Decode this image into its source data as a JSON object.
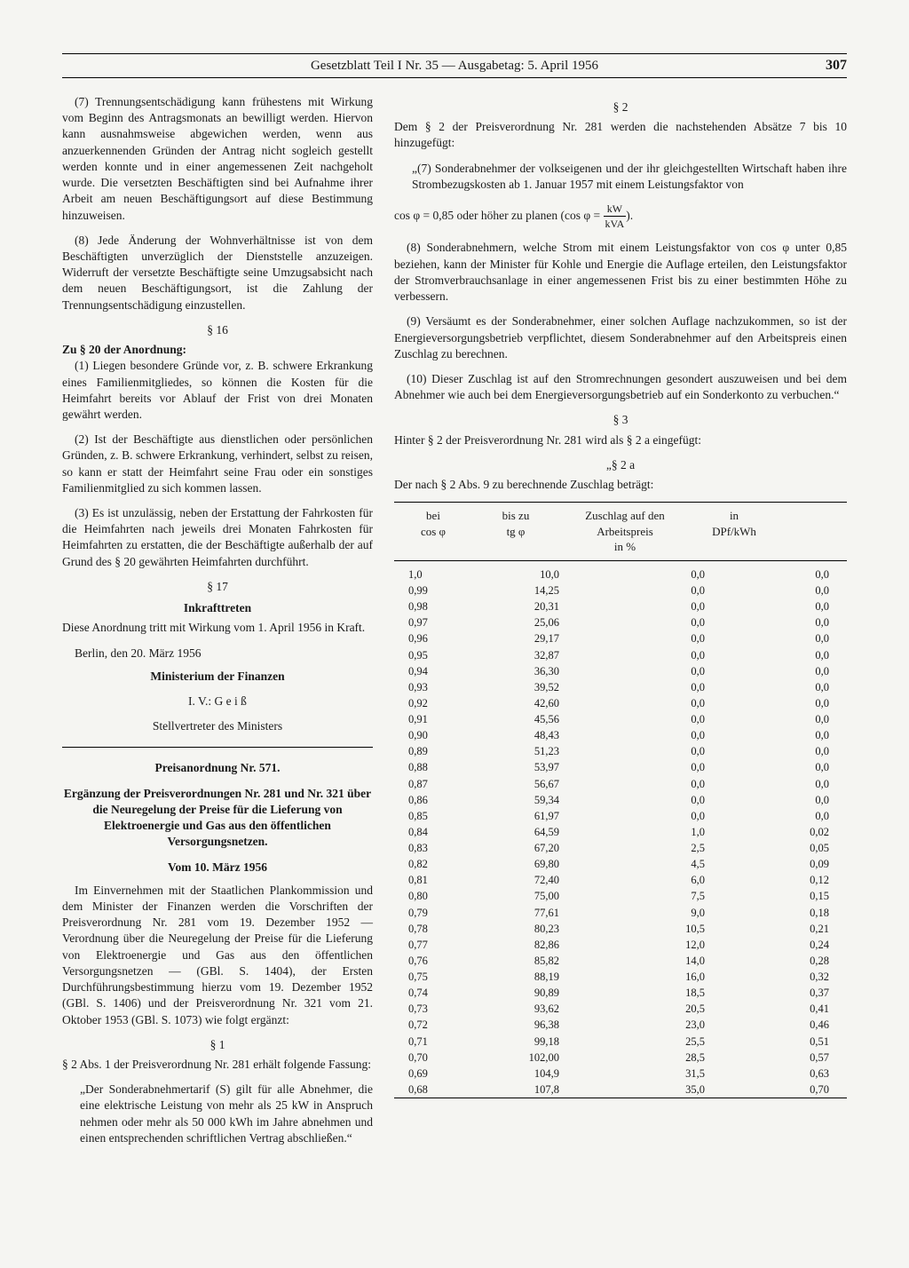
{
  "header": {
    "title": "Gesetzblatt Teil I Nr. 35 — Ausgabetag: 5. April 1956",
    "page_number": "307"
  },
  "left": {
    "p1": "(7) Trennungsentschädigung kann frühestens mit Wirkung vom Beginn des Antragsmonats an bewilligt werden. Hiervon kann ausnahmsweise abgewichen werden, wenn aus anzuerkennenden Gründen der Antrag nicht sogleich gestellt werden konnte und in einer angemessenen Zeit nachgeholt wurde. Die versetzten Beschäftigten sind bei Aufnahme ihrer Arbeit am neuen Beschäftigungsort auf diese Bestimmung hinzuweisen.",
    "p2": "(8) Jede Änderung der Wohnverhältnisse ist von dem Beschäftigten unverzüglich der Dienststelle anzuzeigen. Widerruft der versetzte Beschäftigte seine Umzugsabsicht nach dem neuen Beschäftigungsort, ist die Zahlung der Trennungsentschädigung einzustellen.",
    "s16": "§ 16",
    "s16_head": "Zu § 20 der Anordnung:",
    "p3": "(1) Liegen besondere Gründe vor, z. B. schwere Erkrankung eines Familienmitgliedes, so können die Kosten für die Heimfahrt bereits vor Ablauf der Frist von drei Monaten gewährt werden.",
    "p4": "(2) Ist der Beschäftigte aus dienstlichen oder persönlichen Gründen, z. B. schwere Erkrankung, verhindert, selbst zu reisen, so kann er statt der Heimfahrt seine Frau oder ein sonstiges Familienmitglied zu sich kommen lassen.",
    "p5": "(3) Es ist unzulässig, neben der Erstattung der Fahrkosten für die Heimfahrten nach jeweils drei Monaten Fahrkosten für Heimfahrten zu erstatten, die der Beschäftigte außerhalb der auf Grund des § 20 gewährten Heimfahrten durchführt.",
    "s17": "§ 17",
    "s17_head": "Inkrafttreten",
    "p6": "Diese Anordnung tritt mit Wirkung vom 1. April 1956 in Kraft.",
    "date": "Berlin, den 20. März 1956",
    "ministry": "Ministerium der Finanzen",
    "sig1": "I. V.: G e i ß",
    "sig2": "Stellvertreter des Ministers",
    "ord_num": "Preisanordnung Nr. 571.",
    "ord_title": "Ergänzung der Preisverordnungen Nr. 281 und Nr. 321 über die Neuregelung der Preise für die Lieferung von Elektroenergie und Gas aus den öffentlichen Versorgungsnetzen.",
    "ord_date": "Vom 10. März 1956",
    "p7": "Im Einvernehmen mit der Staatlichen Plankommission und dem Minister der Finanzen werden die Vorschriften der Preisverordnung Nr. 281 vom 19. Dezember 1952 — Verordnung über die Neuregelung der Preise für die Lieferung von Elektroenergie und Gas aus den öffentlichen Versorgungsnetzen — (GBl. S. 1404), der Ersten Durchführungsbestimmung hierzu vom 19. Dezember 1952 (GBl. S. 1406) und der Preisverordnung Nr. 321 vom 21. Oktober 1953 (GBl. S. 1073) wie folgt ergänzt:",
    "s1": "§ 1",
    "p8": "§ 2 Abs. 1 der Preisverordnung Nr. 281 erhält folgende Fassung:",
    "p9": "„Der Sonderabnehmertarif (S) gilt für alle Abnehmer, die eine elektrische Leistung von mehr als 25 kW in Anspruch nehmen oder mehr als 50 000 kWh im Jahre abnehmen und einen entsprechenden schriftlichen Vertrag abschließen.“"
  },
  "right": {
    "s2": "§ 2",
    "p1": "Dem § 2 der Preisverordnung Nr. 281 werden die nachstehenden Absätze 7 bis 10 hinzugefügt:",
    "p2": "„(7) Sonderabnehmer der volkseigenen und der ihr gleichgestellten Wirtschaft haben ihre Strombezugskosten ab 1. Januar 1957 mit einem Leistungsfaktor von",
    "formula_pre": "cos φ = 0,85 oder höher zu planen (cos φ =",
    "frac_num": "kW",
    "frac_den": "kVA",
    "formula_post": ").",
    "p3": "(8) Sonderabnehmern, welche Strom mit einem Leistungsfaktor von cos φ unter 0,85 beziehen, kann der Minister für Kohle und Energie die Auflage erteilen, den Leistungsfaktor der Stromverbrauchsanlage in einer angemessenen Frist bis zu einer bestimmten Höhe zu verbessern.",
    "p4": "(9) Versäumt es der Sonderabnehmer, einer solchen Auflage nachzukommen, so ist der Energieversorgungsbetrieb verpflichtet, diesem Sonderabnehmer auf den Arbeitspreis einen Zuschlag zu berechnen.",
    "p5": "(10) Dieser Zuschlag ist auf den Stromrechnungen gesondert auszuweisen und bei dem Abnehmer wie auch bei dem Energieversorgungsbetrieb auf ein Sonderkonto zu verbuchen.“",
    "s3": "§ 3",
    "p6": "Hinter § 2 der Preisverordnung Nr. 281 wird als § 2 a eingefügt:",
    "s2a": "„§ 2 a",
    "p7": "Der nach § 2 Abs. 9 zu berechnende Zuschlag beträgt:"
  },
  "table": {
    "headers": {
      "h1a": "bei",
      "h1b": "cos φ",
      "h2a": "bis zu",
      "h2b": "tg φ",
      "h3a": "Zuschlag auf den",
      "h3b": "Arbeitspreis",
      "h3c": "in %",
      "h4a": "in",
      "h4b": "DPf/kWh"
    },
    "rows": [
      [
        "1,0",
        "10,0",
        "0,0",
        "0,0"
      ],
      [
        "0,99",
        "14,25",
        "0,0",
        "0,0"
      ],
      [
        "0,98",
        "20,31",
        "0,0",
        "0,0"
      ],
      [
        "0,97",
        "25,06",
        "0,0",
        "0,0"
      ],
      [
        "0,96",
        "29,17",
        "0,0",
        "0,0"
      ],
      [
        "0,95",
        "32,87",
        "0,0",
        "0,0"
      ],
      [
        "0,94",
        "36,30",
        "0,0",
        "0,0"
      ],
      [
        "0,93",
        "39,52",
        "0,0",
        "0,0"
      ],
      [
        "0,92",
        "42,60",
        "0,0",
        "0,0"
      ],
      [
        "0,91",
        "45,56",
        "0,0",
        "0,0"
      ],
      [
        "0,90",
        "48,43",
        "0,0",
        "0,0"
      ],
      [
        "0,89",
        "51,23",
        "0,0",
        "0,0"
      ],
      [
        "0,88",
        "53,97",
        "0,0",
        "0,0"
      ],
      [
        "0,87",
        "56,67",
        "0,0",
        "0,0"
      ],
      [
        "0,86",
        "59,34",
        "0,0",
        "0,0"
      ],
      [
        "0,85",
        "61,97",
        "0,0",
        "0,0"
      ],
      [
        "0,84",
        "64,59",
        "1,0",
        "0,02"
      ],
      [
        "0,83",
        "67,20",
        "2,5",
        "0,05"
      ],
      [
        "0,82",
        "69,80",
        "4,5",
        "0,09"
      ],
      [
        "0,81",
        "72,40",
        "6,0",
        "0,12"
      ],
      [
        "0,80",
        "75,00",
        "7,5",
        "0,15"
      ],
      [
        "0,79",
        "77,61",
        "9,0",
        "0,18"
      ],
      [
        "0,78",
        "80,23",
        "10,5",
        "0,21"
      ],
      [
        "0,77",
        "82,86",
        "12,0",
        "0,24"
      ],
      [
        "0,76",
        "85,82",
        "14,0",
        "0,28"
      ],
      [
        "0,75",
        "88,19",
        "16,0",
        "0,32"
      ],
      [
        "0,74",
        "90,89",
        "18,5",
        "0,37"
      ],
      [
        "0,73",
        "93,62",
        "20,5",
        "0,41"
      ],
      [
        "0,72",
        "96,38",
        "23,0",
        "0,46"
      ],
      [
        "0,71",
        "99,18",
        "25,5",
        "0,51"
      ],
      [
        "0,70",
        "102,00",
        "28,5",
        "0,57"
      ],
      [
        "0,69",
        "104,9",
        "31,5",
        "0,63"
      ],
      [
        "0,68",
        "107,8",
        "35,0",
        "0,70"
      ]
    ]
  }
}
